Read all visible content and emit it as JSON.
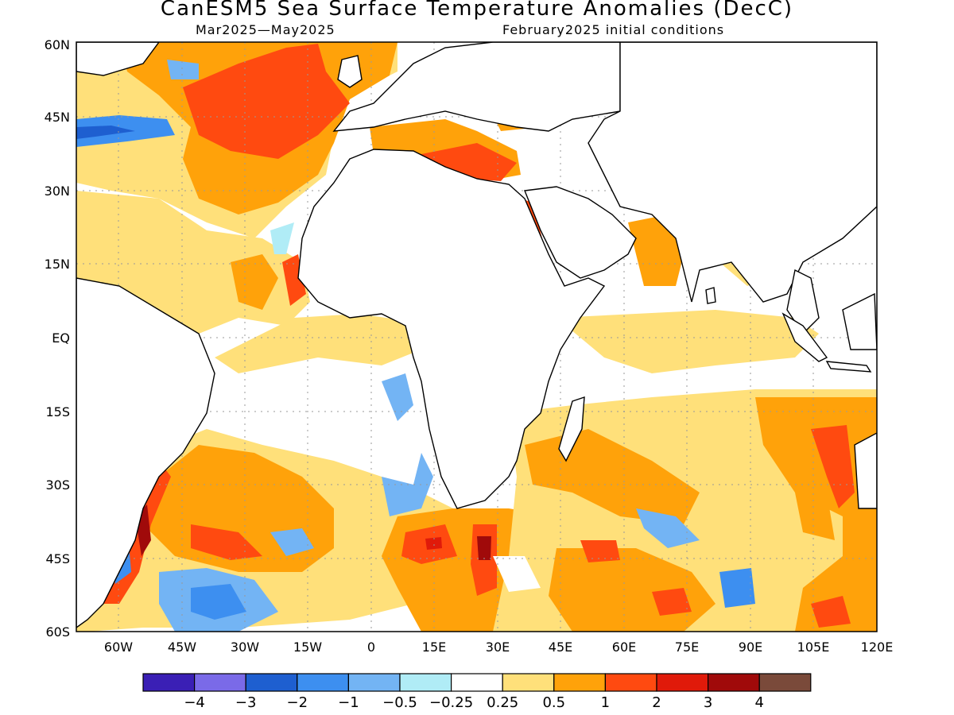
{
  "title": "CanESM5 Sea Surface Temperature Anomalies (DecC)",
  "period": "Mar2025—May2025",
  "init": "February2025 initial conditions",
  "lat_labels": [
    "60N",
    "45N",
    "30N",
    "15N",
    "EQ",
    "15S",
    "30S",
    "45S",
    "60S"
  ],
  "lon_labels": [
    "60W",
    "45W",
    "30W",
    "15W",
    "0",
    "15E",
    "30E",
    "45E",
    "60E",
    "75E",
    "90E",
    "105E",
    "120E"
  ],
  "legend": {
    "colors": [
      "#3a1fb5",
      "#7a6ae8",
      "#1e5fd0",
      "#3d8ff0",
      "#73b4f4",
      "#b0ecf6",
      "#ffffff",
      "#ffe07a",
      "#ffa20a",
      "#ff4a10",
      "#e01a0a",
      "#a00a0a",
      "#7a4a3a"
    ],
    "labels": [
      "−4",
      "−3",
      "−2",
      "−1",
      "−0.5",
      "−0.25",
      "0.25",
      "0.5",
      "1",
      "2",
      "3",
      "4"
    ]
  }
}
